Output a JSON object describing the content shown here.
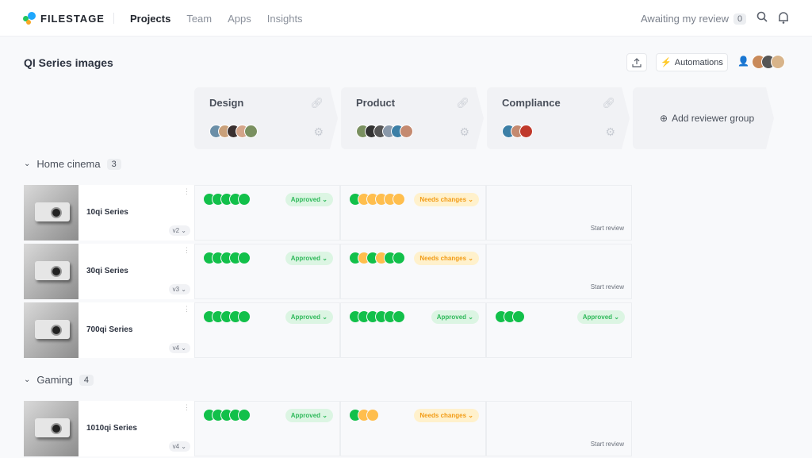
{
  "nav": {
    "brand": "FILESTAGE",
    "links": [
      "Projects",
      "Team",
      "Apps",
      "Insights"
    ],
    "awaiting_label": "Awaiting my review",
    "awaiting_count": "0"
  },
  "page": {
    "title": "QI Series images",
    "automations": "Automations",
    "add_group": "Add reviewer group"
  },
  "colors": {
    "approved": "#12c04a",
    "changes": "#ffbe4d",
    "approved_bg": "#dcf5e3",
    "changes_bg": "#fff1cc",
    "approved_text": "#2fb95a",
    "changes_text": "#f29c16"
  },
  "reviewer_groups": [
    {
      "name": "Design",
      "members": 5
    },
    {
      "name": "Product",
      "members": 6
    },
    {
      "name": "Compliance",
      "members": 3
    }
  ],
  "sections": [
    {
      "name": "Home cinema",
      "count": "3",
      "items": [
        {
          "name": "10qi Series",
          "version": "v2",
          "reviews": [
            {
              "circles": "GGGGG",
              "status": "Approved"
            },
            {
              "circles": "GOOOOO",
              "status": "Needs changes"
            },
            {
              "circles": "",
              "status": "",
              "action": "Start review"
            }
          ]
        },
        {
          "name": "30qi Series",
          "version": "v3",
          "reviews": [
            {
              "circles": "GGGGG",
              "status": "Approved"
            },
            {
              "circles": "GOGOGG",
              "status": "Needs changes"
            },
            {
              "circles": "",
              "status": "",
              "action": "Start review"
            }
          ]
        },
        {
          "name": "700qi Series",
          "version": "v4",
          "reviews": [
            {
              "circles": "GGGGG",
              "status": "Approved"
            },
            {
              "circles": "GGGGGG",
              "status": "Approved"
            },
            {
              "circles": "GGG",
              "status": "Approved"
            }
          ]
        }
      ]
    },
    {
      "name": "Gaming",
      "count": "4",
      "items": [
        {
          "name": "1010qi Series",
          "version": "v4",
          "reviews": [
            {
              "circles": "GGGGG",
              "status": "Approved"
            },
            {
              "circles": "GOO",
              "status": "Needs changes"
            },
            {
              "circles": "",
              "status": "",
              "action": "Start review"
            }
          ]
        }
      ]
    }
  ]
}
